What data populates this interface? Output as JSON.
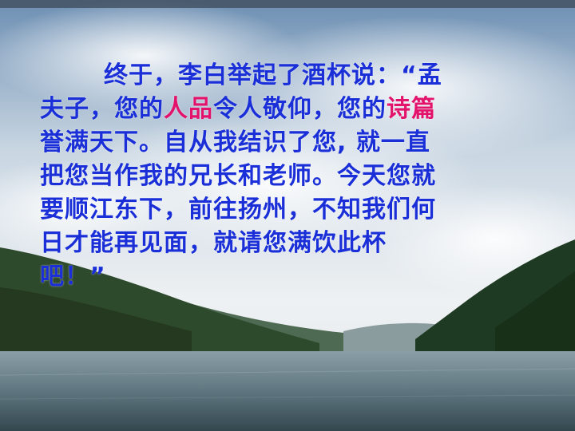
{
  "colors": {
    "text": "#1a2fd8",
    "highlight": "#e3126a"
  },
  "passage": {
    "line1": "终于，李白举起了酒杯说：“孟",
    "line2_a": "夫子，您的",
    "line2_hl1": "人品",
    "line2_b": "令人敬仰，您的",
    "line2_hl2": "诗篇",
    "line3": "誉满天下。自从我结识了您, 就一直",
    "line4": "把您当作我的兄长和老师。今天您就",
    "line5": "要顺江东下，前往扬州，不知我们何",
    "line6": "日才能再见面，就请您满饮此杯",
    "line7": "吧！”"
  }
}
